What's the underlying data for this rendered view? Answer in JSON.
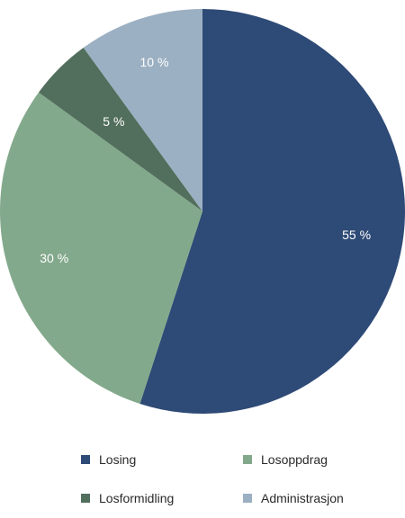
{
  "chart_data": {
    "type": "pie",
    "title": "",
    "series": [
      {
        "name": "Losing",
        "value": 55,
        "label": "55 %",
        "color": "#2e4a76"
      },
      {
        "name": "Losoppdrag",
        "value": 30,
        "label": "30 %",
        "color": "#83a98c"
      },
      {
        "name": "Losformidling",
        "value": 5,
        "label": "5 %",
        "color": "#526e5c"
      },
      {
        "name": "Administrasjon",
        "value": 10,
        "label": "10 %",
        "color": "#9bb0c2"
      }
    ],
    "legend_position": "bottom",
    "label_color": "#ffffff"
  }
}
